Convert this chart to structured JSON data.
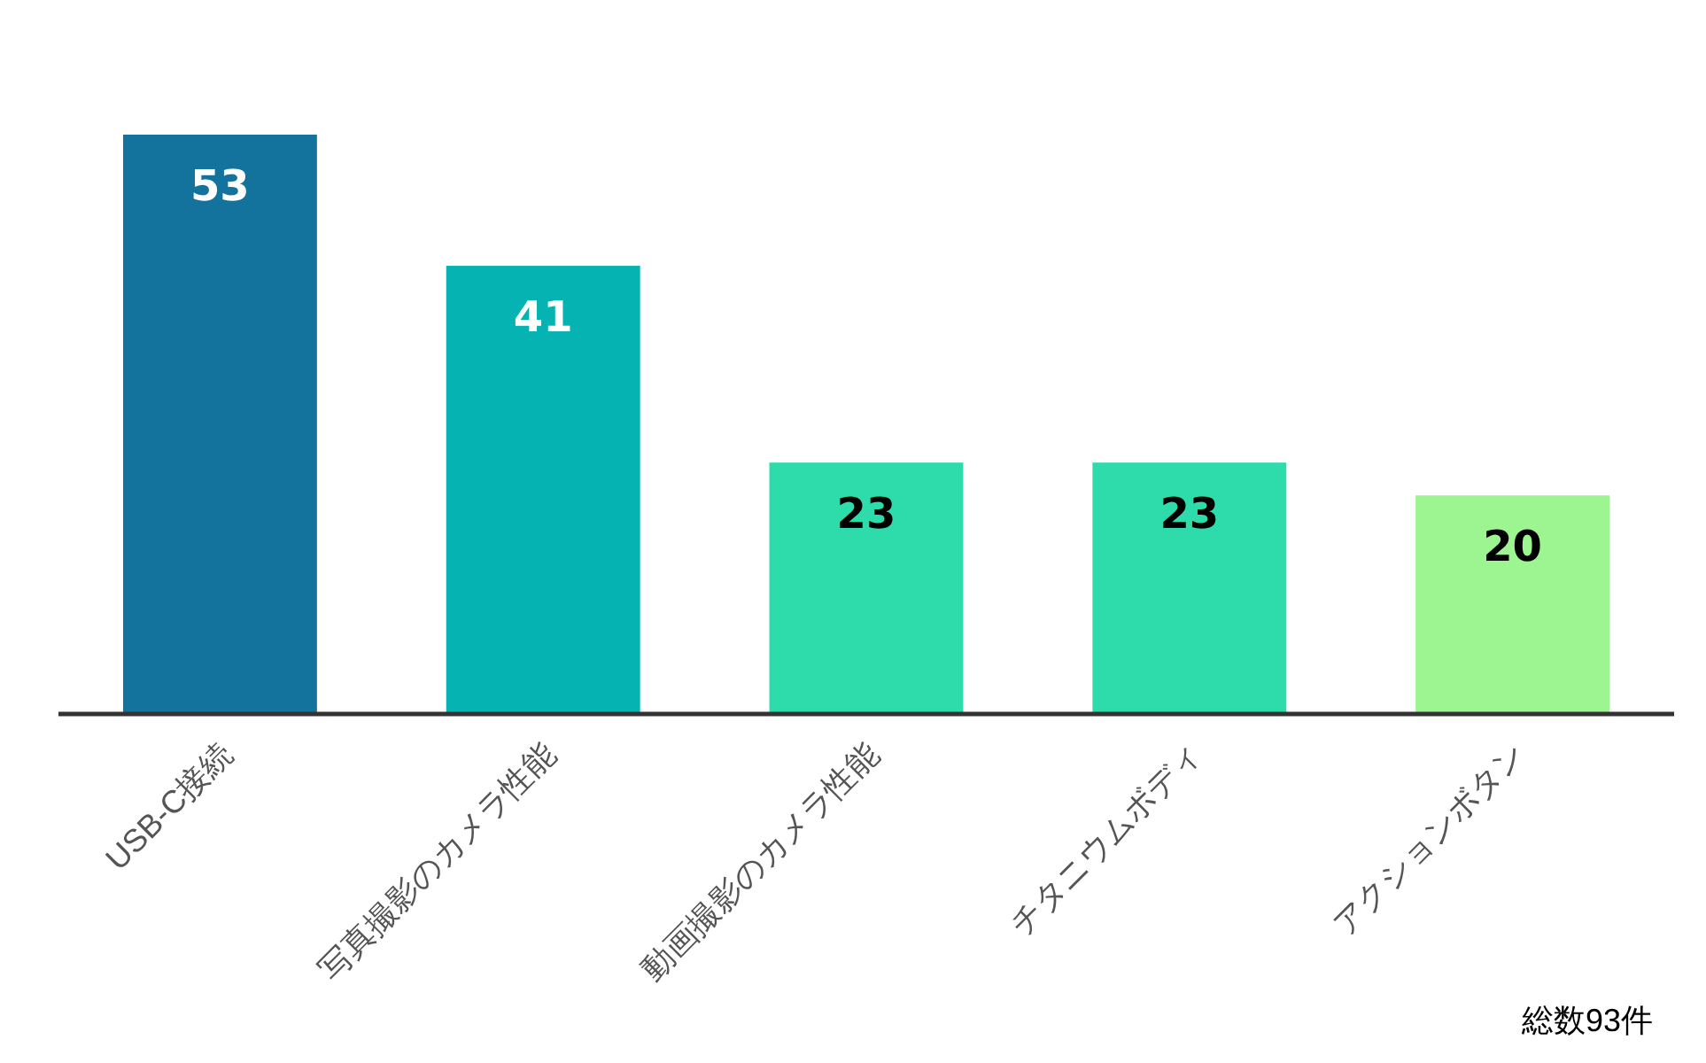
{
  "chart_data": {
    "type": "bar",
    "categories": [
      "USB-C接続",
      "写真撮影のカメラ性能",
      "動画撮影のカメラ性能",
      "チタニウムボディ",
      "アクションボタン"
    ],
    "values": [
      53,
      41,
      23,
      23,
      20
    ],
    "colors": [
      "#14739c",
      "#05b3b3",
      "#2ddcaa",
      "#2ddcaa",
      "#9cf590"
    ],
    "data_labels": true,
    "annotations": [
      "総数93件"
    ]
  }
}
